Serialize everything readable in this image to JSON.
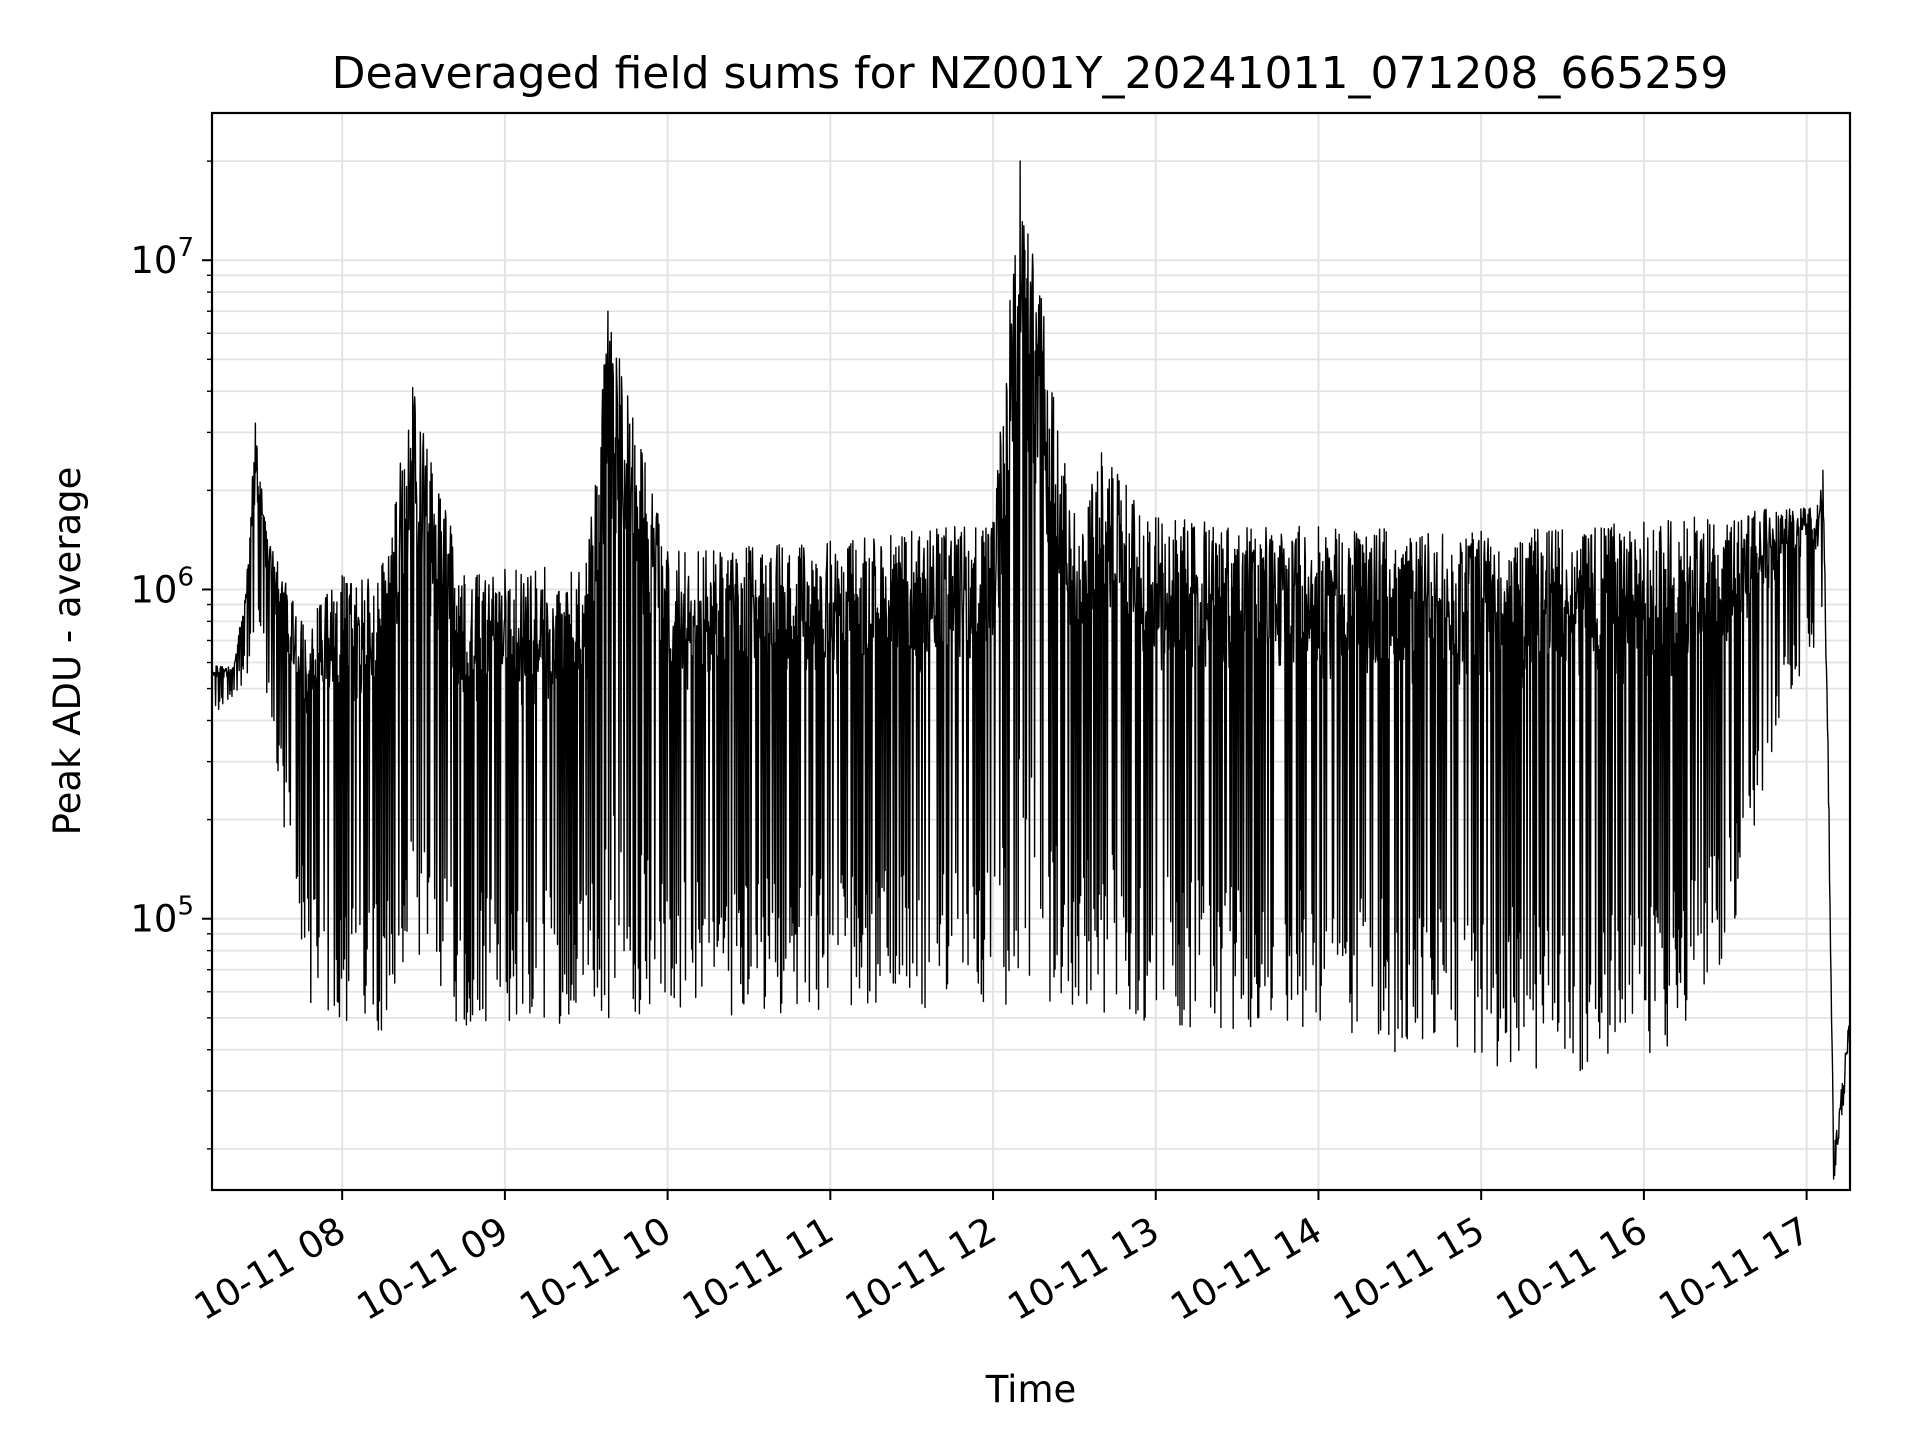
{
  "chart_data": {
    "type": "line",
    "title": "Deaveraged field sums for NZ001Y_20241011_071208_665259",
    "xlabel": "Time",
    "ylabel": "Peak ADU - average",
    "yscale": "log",
    "xlim": [
      "2024-10-11 07:12",
      "2024-10-11 17:16"
    ],
    "ylim": [
      15000,
      28000000
    ],
    "grid": true,
    "line_color": "#000000",
    "x_ticks": [
      {
        "value": "2024-10-11 08:00",
        "label": "10-11 08"
      },
      {
        "value": "2024-10-11 09:00",
        "label": "10-11 09"
      },
      {
        "value": "2024-10-11 10:00",
        "label": "10-11 10"
      },
      {
        "value": "2024-10-11 11:00",
        "label": "10-11 11"
      },
      {
        "value": "2024-10-11 12:00",
        "label": "10-11 12"
      },
      {
        "value": "2024-10-11 13:00",
        "label": "10-11 13"
      },
      {
        "value": "2024-10-11 14:00",
        "label": "10-11 14"
      },
      {
        "value": "2024-10-11 15:00",
        "label": "10-11 15"
      },
      {
        "value": "2024-10-11 16:00",
        "label": "10-11 16"
      },
      {
        "value": "2024-10-11 17:00",
        "label": "10-11 17"
      }
    ],
    "y_ticks": [
      {
        "value": 100000,
        "base": "10",
        "exp": "5"
      },
      {
        "value": 1000000,
        "base": "10",
        "exp": "6"
      },
      {
        "value": 10000000,
        "base": "10",
        "exp": "7"
      }
    ],
    "series": [
      {
        "name": "",
        "upper_envelope": [
          [
            "2024-10-11 07:12",
            600000
          ],
          [
            "2024-10-11 07:20",
            580000
          ],
          [
            "2024-10-11 07:25",
            1150000
          ],
          [
            "2024-10-11 07:28",
            3200000
          ],
          [
            "2024-10-11 07:32",
            1500000
          ],
          [
            "2024-10-11 07:45",
            800000
          ],
          [
            "2024-10-11 08:00",
            1100000
          ],
          [
            "2024-10-11 08:15",
            1200000
          ],
          [
            "2024-10-11 08:26",
            4100000
          ],
          [
            "2024-10-11 08:45",
            1100000
          ],
          [
            "2024-10-11 09:00",
            1150000
          ],
          [
            "2024-10-11 09:30",
            1200000
          ],
          [
            "2024-10-11 09:38",
            7000000
          ],
          [
            "2024-10-11 10:00",
            1300000
          ],
          [
            "2024-10-11 10:30",
            1350000
          ],
          [
            "2024-10-11 11:00",
            1400000
          ],
          [
            "2024-10-11 11:30",
            1500000
          ],
          [
            "2024-10-11 12:00",
            1600000
          ],
          [
            "2024-10-11 12:10",
            20000000
          ],
          [
            "2024-10-11 12:30",
            1700000
          ],
          [
            "2024-10-11 12:40",
            2600000
          ],
          [
            "2024-10-11 13:00",
            1650000
          ],
          [
            "2024-10-11 14:00",
            1550000
          ],
          [
            "2024-10-11 15:00",
            1500000
          ],
          [
            "2024-10-11 16:00",
            1600000
          ],
          [
            "2024-10-11 16:45",
            1750000
          ],
          [
            "2024-10-11 17:04",
            1800000
          ],
          [
            "2024-10-11 17:06",
            2300000
          ],
          [
            "2024-10-11 17:08",
            280000
          ],
          [
            "2024-10-11 17:10",
            18000
          ],
          [
            "2024-10-11 17:16",
            47000
          ]
        ],
        "lower_envelope": [
          [
            "2024-10-11 07:12",
            400000
          ],
          [
            "2024-10-11 07:30",
            600000
          ],
          [
            "2024-10-11 07:40",
            150000
          ],
          [
            "2024-10-11 07:48",
            52000
          ],
          [
            "2024-10-11 08:00",
            45000
          ],
          [
            "2024-10-11 09:00",
            47000
          ],
          [
            "2024-10-11 10:00",
            50000
          ],
          [
            "2024-10-11 11:00",
            52000
          ],
          [
            "2024-10-11 12:00",
            55000
          ],
          [
            "2024-10-11 13:00",
            48000
          ],
          [
            "2024-10-11 14:00",
            42000
          ],
          [
            "2024-10-11 15:00",
            36000
          ],
          [
            "2024-10-11 15:40",
            34000
          ],
          [
            "2024-10-11 16:15",
            42000
          ],
          [
            "2024-10-11 16:35",
            90000
          ],
          [
            "2024-10-11 16:50",
            400000
          ],
          [
            "2024-10-11 17:00",
            600000
          ],
          [
            "2024-10-11 17:06",
            700000
          ]
        ]
      }
    ]
  }
}
